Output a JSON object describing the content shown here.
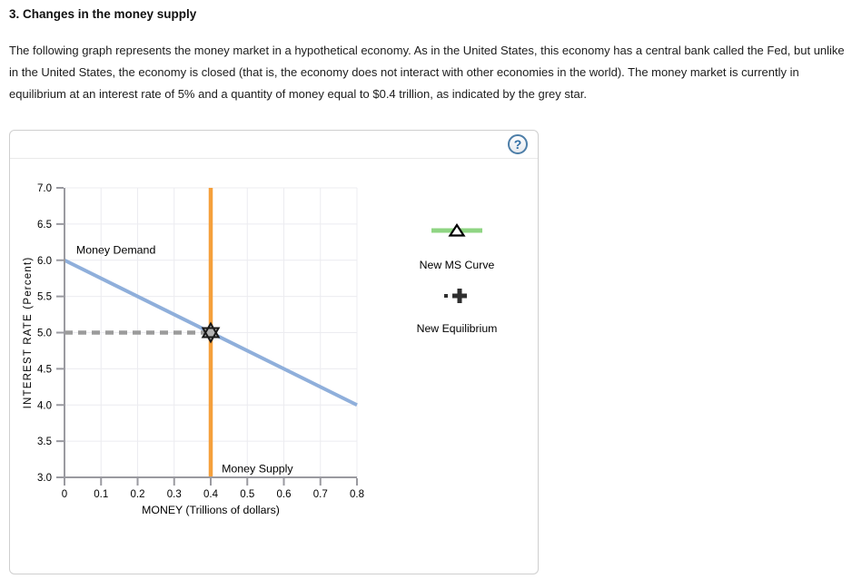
{
  "page": {
    "title": "3. Changes in the money supply",
    "paragraph": "The following graph represents the money market in a hypothetical economy. As in the United States, this economy has a central bank called the Fed, but unlike in the United States, the economy is closed (that is, the economy does not interact with other economies in the world). The money market is currently in equilibrium at an interest rate of 5% and a quantity of money equal to $0.4 trillion, as indicated by the grey star."
  },
  "panel": {
    "help_label": "?",
    "legend": {
      "ms": {
        "label": "New MS Curve",
        "line_color": "#8FD583",
        "marker": "triangle-up"
      },
      "eq": {
        "label": "New Equilibrium",
        "color": "#2F2F2F",
        "marker": "plus-grip"
      }
    }
  },
  "chart_data": {
    "type": "line",
    "title": "",
    "xlabel": "MONEY (Trillions of dollars)",
    "ylabel": "INTEREST RATE (Percent)",
    "xlim": [
      0,
      0.8
    ],
    "ylim": [
      3.0,
      7.0
    ],
    "grid": true,
    "xticks": {
      "values": [
        0,
        0.1,
        0.2,
        0.3,
        0.4,
        0.5,
        0.6,
        0.7,
        0.8
      ],
      "labels": [
        "0",
        "0.1",
        "0.2",
        "0.3",
        "0.4",
        "0.5",
        "0.6",
        "0.7",
        "0.8"
      ]
    },
    "yticks": {
      "values": [
        3.0,
        3.5,
        4.0,
        4.5,
        5.0,
        5.5,
        6.0,
        6.5,
        7.0
      ],
      "labels": [
        "3.0",
        "3.5",
        "4.0",
        "4.5",
        "5.0",
        "5.5",
        "6.0",
        "6.5",
        "7.0"
      ]
    },
    "series": [
      {
        "name": "Money Demand",
        "kind": "line",
        "color": "#8FAFDB",
        "width": 4,
        "points": [
          [
            0,
            6.0
          ],
          [
            0.8,
            4.0
          ]
        ]
      },
      {
        "name": "Money Supply",
        "kind": "vline",
        "color": "#F5A03C",
        "width": 4.5,
        "x": 0.4,
        "y_range": [
          3.0,
          7.0
        ]
      },
      {
        "name": "Equilibrium guide line",
        "kind": "dashed",
        "color": "#9B9B9B",
        "width": 4.5,
        "dash": "9 6",
        "points": [
          [
            0,
            5.0
          ],
          [
            0.4,
            5.0
          ]
        ]
      },
      {
        "name": "Initial equilibrium star",
        "kind": "star",
        "fill": "#B3B3B3",
        "stroke": "#1A1A1A",
        "point": [
          0.4,
          5.0
        ]
      }
    ],
    "annotations": [
      {
        "text": "Money Demand",
        "x": 0.032,
        "y": 6.09,
        "anchor": "start"
      },
      {
        "text": "Money Supply",
        "x": 0.43,
        "y": 3.07,
        "anchor": "start"
      }
    ],
    "equilibrium": {
      "interest_rate_percent": 5,
      "quantity_trillions_usd": 0.4
    },
    "axis_color": "#9A9AA0",
    "grid_color": "#ECECF0"
  }
}
